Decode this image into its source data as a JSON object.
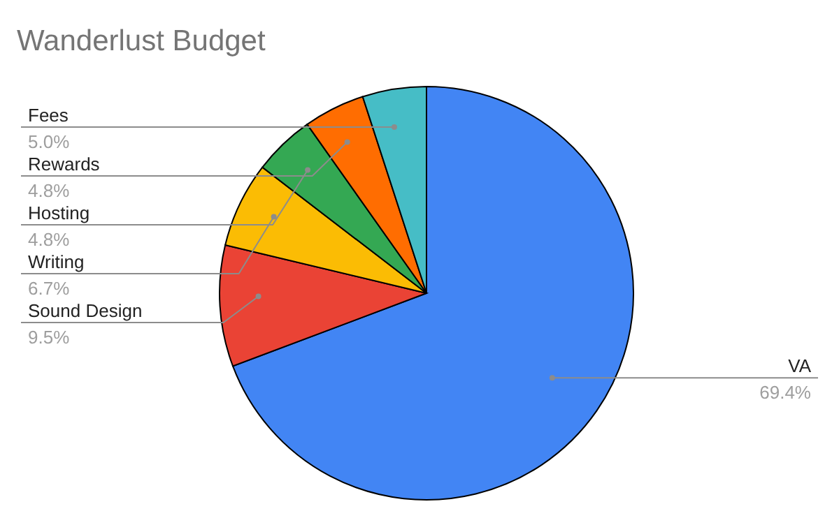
{
  "chart_data": {
    "type": "pie",
    "title": "Wanderlust Budget",
    "categories": [
      "VA",
      "Sound Design",
      "Writing",
      "Hosting",
      "Rewards",
      "Fees"
    ],
    "values": [
      69.4,
      9.5,
      6.7,
      4.8,
      4.8,
      5.0
    ],
    "value_labels": [
      "69.4%",
      "9.5%",
      "6.7%",
      "4.8%",
      "4.8%",
      "5.0%"
    ],
    "colors": [
      "#4285f4",
      "#ea4335",
      "#fbbc04",
      "#34a853",
      "#ff6d01",
      "#46bdc6"
    ]
  }
}
